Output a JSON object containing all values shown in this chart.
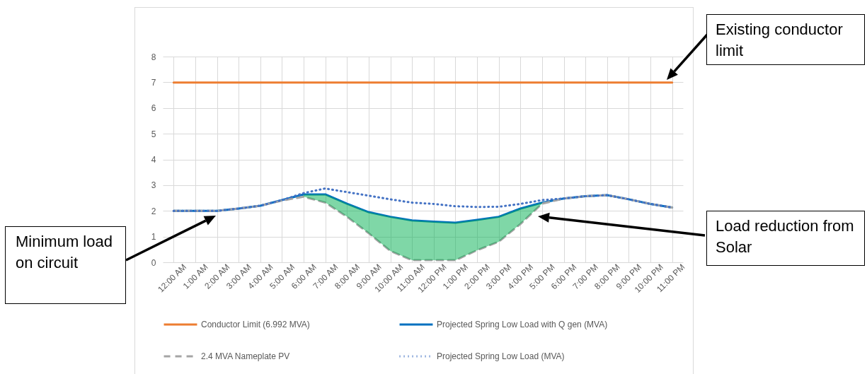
{
  "chart_data": {
    "type": "line",
    "categories": [
      "12:00 AM",
      "1:00 AM",
      "2:00 AM",
      "3:00 AM",
      "4:00 AM",
      "5:00 AM",
      "6:00 AM",
      "7:00 AM",
      "8:00 AM",
      "9:00 AM",
      "10:00 AM",
      "11:00 AM",
      "12:00 PM",
      "1:00 PM",
      "2:00 PM",
      "3:00 PM",
      "4:00 PM",
      "5:00 PM",
      "6:00 PM",
      "7:00 PM",
      "8:00 PM",
      "9:00 PM",
      "10:00 PM",
      "11:00 PM"
    ],
    "series": [
      {
        "name": "Conductor Limit (6.992 MVA)",
        "color": "#ed7d31",
        "line_style": "solid",
        "values": [
          6.992,
          6.992,
          6.992,
          6.992,
          6.992,
          6.992,
          6.992,
          6.992,
          6.992,
          6.992,
          6.992,
          6.992,
          6.992,
          6.992,
          6.992,
          6.992,
          6.992,
          6.992,
          6.992,
          6.992,
          6.992,
          6.992,
          6.992,
          6.992
        ]
      },
      {
        "name": "Projected Spring Low Load with Q gen (MVA)",
        "color": "#0070c0",
        "line_style": "solid",
        "values": [
          2.0,
          2.0,
          2.0,
          2.09,
          2.2,
          2.42,
          2.64,
          2.64,
          2.28,
          1.95,
          1.77,
          1.63,
          1.58,
          1.54,
          1.65,
          1.77,
          2.09,
          2.32,
          2.48,
          2.57,
          2.61,
          2.45,
          2.27,
          2.13
        ],
        "upper": [
          null,
          null,
          null,
          null,
          null,
          null,
          2.64,
          2.64,
          2.28,
          1.95,
          1.77,
          1.63,
          1.58,
          1.54,
          1.65,
          1.77,
          2.09,
          2.32,
          null,
          null,
          null,
          null,
          null,
          null
        ],
        "lower": [
          null,
          null,
          null,
          null,
          null,
          null,
          2.55,
          2.32,
          1.77,
          1.13,
          0.44,
          0.08,
          0.08,
          0.08,
          0.47,
          0.8,
          1.49,
          2.28,
          null,
          null,
          null,
          null,
          null,
          null
        ]
      },
      {
        "name": "2.4 MVA Nameplate PV",
        "color": "#a5a5a5",
        "line_style": "dashed",
        "values": [
          2.0,
          2.0,
          2.0,
          2.09,
          2.2,
          2.4,
          2.55,
          2.32,
          1.77,
          1.13,
          0.44,
          0.08,
          0.08,
          0.08,
          0.47,
          0.8,
          1.49,
          2.28,
          2.48,
          2.57,
          2.61,
          2.45,
          2.27,
          2.13
        ]
      },
      {
        "name": "Projected Spring Low Load (MVA)",
        "color": "#4472c4",
        "line_style": "dotted",
        "values": [
          2.0,
          2.0,
          2.0,
          2.09,
          2.2,
          2.42,
          2.69,
          2.87,
          2.73,
          2.59,
          2.45,
          2.32,
          2.27,
          2.18,
          2.15,
          2.16,
          2.27,
          2.42,
          2.48,
          2.57,
          2.61,
          2.45,
          2.27,
          2.13
        ]
      }
    ],
    "ylim": [
      0,
      8
    ],
    "yticks": [
      0,
      1,
      2,
      3,
      4,
      5,
      6,
      7,
      8
    ],
    "grid": true,
    "legend": "bottom",
    "marker": "none",
    "annotations": [
      "Existing conductor limit",
      "Minimum load on circuit",
      "Load reduction from Solar"
    ]
  }
}
